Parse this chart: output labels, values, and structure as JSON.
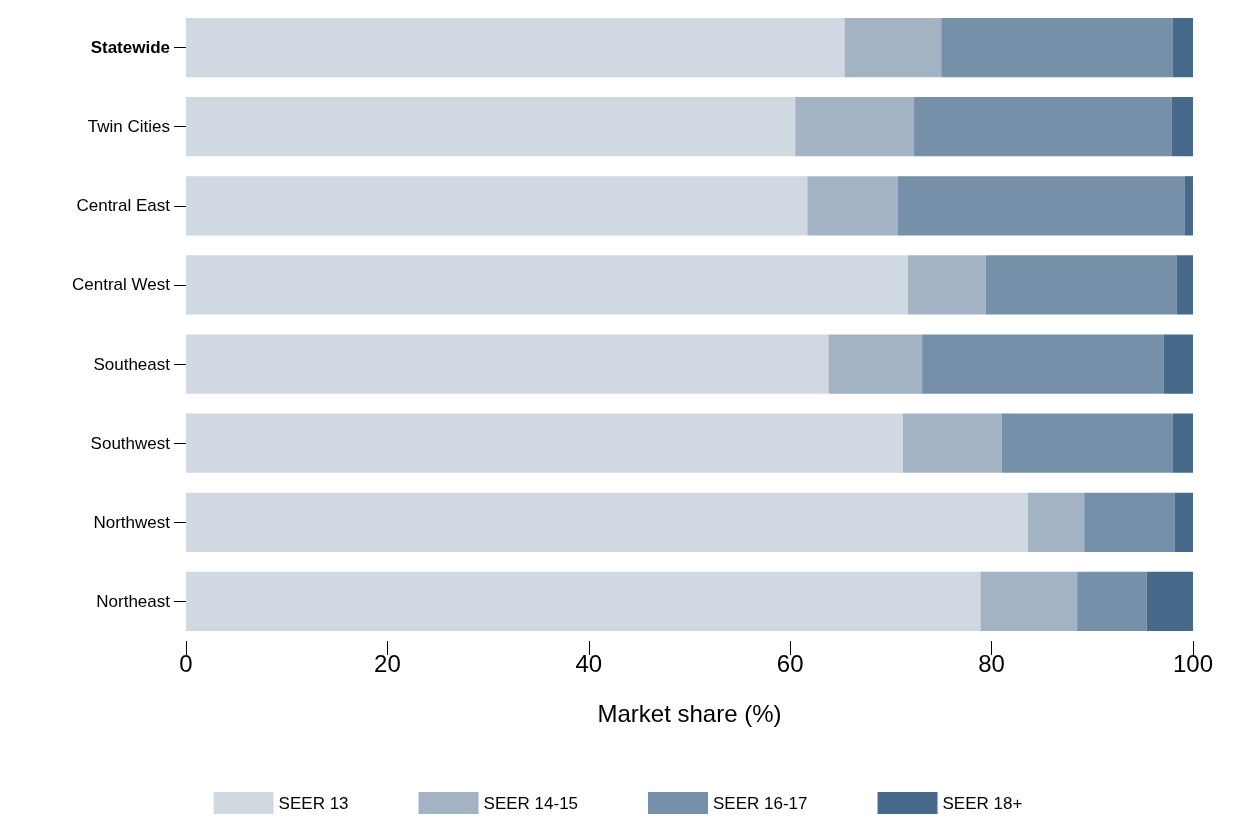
{
  "chart_data": {
    "type": "bar",
    "orientation": "horizontal",
    "stacked": true,
    "categories": [
      "Statewide",
      "Twin Cities",
      "Central East",
      "Central West",
      "Southeast",
      "Southwest",
      "Northwest",
      "Northeast"
    ],
    "series": [
      {
        "name": "SEER 13",
        "color": "#d0d9e2",
        "values": [
          65.4,
          60.5,
          61.7,
          71.7,
          63.8,
          71.2,
          83.6,
          78.9
        ]
      },
      {
        "name": "SEER 14-15",
        "color": "#a3b3c3",
        "values": [
          9.6,
          11.8,
          9.0,
          7.7,
          9.3,
          9.8,
          5.6,
          9.6
        ]
      },
      {
        "name": "SEER 16-17",
        "color": "#7590a8",
        "values": [
          23.0,
          25.6,
          28.5,
          19.0,
          24.0,
          17.0,
          9.0,
          6.9
        ]
      },
      {
        "name": "SEER 18+",
        "color": "#486a8a",
        "values": [
          2.0,
          2.1,
          0.8,
          1.6,
          2.9,
          2.0,
          1.8,
          4.6
        ]
      }
    ],
    "xlabel": "Market share (%)",
    "xlim": [
      0,
      100
    ],
    "xticks": [
      0,
      20,
      40,
      60,
      80,
      100
    ],
    "grid": false,
    "legend": "bottom"
  }
}
